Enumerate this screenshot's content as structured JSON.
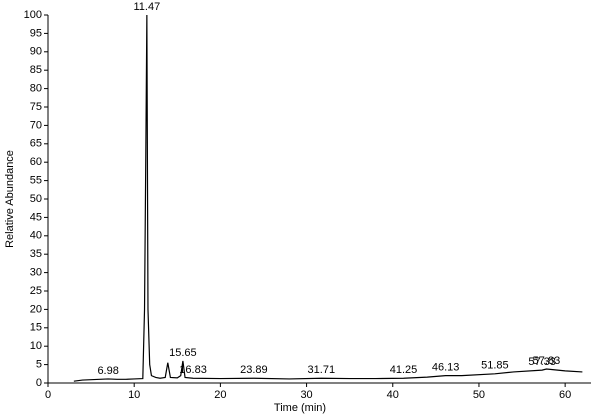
{
  "chart_data": {
    "type": "line",
    "xlabel": "Time (min)",
    "ylabel": "Relative Abundance",
    "xlim": [
      0,
      63
    ],
    "ylim": [
      0,
      100
    ],
    "xticks": [
      0,
      10,
      20,
      30,
      40,
      50,
      60
    ],
    "yticks": [
      0,
      5,
      10,
      15,
      20,
      25,
      30,
      35,
      40,
      45,
      50,
      55,
      60,
      65,
      70,
      75,
      80,
      85,
      90,
      95,
      100
    ],
    "x": [
      3,
      4,
      5,
      6,
      6.98,
      8,
      9,
      10,
      11,
      11.2,
      11.35,
      11.47,
      11.6,
      11.8,
      12,
      12.5,
      13,
      13.6,
      13.9,
      14.2,
      15,
      15.4,
      15.65,
      15.9,
      16.83,
      20,
      23.89,
      28,
      31.71,
      35,
      38,
      41.25,
      44,
      46.13,
      48,
      51.85,
      54,
      57.33,
      57.83,
      60,
      62
    ],
    "series": [
      {
        "color": "#000000",
        "values": [
          0.5,
          0.8,
          0.9,
          1,
          1.1,
          1,
          1,
          1.1,
          1.2,
          20,
          63,
          100,
          20,
          5,
          2,
          1.5,
          1.3,
          1.5,
          5.5,
          1.5,
          1.4,
          2,
          6,
          1.5,
          1.3,
          1.2,
          1.3,
          1.1,
          1.3,
          1.2,
          1.2,
          1.3,
          1.6,
          2,
          2,
          2.5,
          3,
          3.5,
          3.8,
          3.3,
          3
        ]
      }
    ],
    "annotations": [
      {
        "text": "11.47",
        "x": 11.47,
        "y": 100
      },
      {
        "text": "6.98",
        "x": 6.98,
        "y": 1.1
      },
      {
        "text": "15.65",
        "x": 15.65,
        "y": 6
      },
      {
        "text": "16.83",
        "x": 16.83,
        "y": 1.3
      },
      {
        "text": "23.89",
        "x": 23.89,
        "y": 1.3
      },
      {
        "text": "31.71",
        "x": 31.71,
        "y": 1.3
      },
      {
        "text": "41.25",
        "x": 41.25,
        "y": 1.3
      },
      {
        "text": "46.13",
        "x": 46.13,
        "y": 2
      },
      {
        "text": "51.85",
        "x": 51.85,
        "y": 2.5
      },
      {
        "text": "57.33",
        "x": 57.33,
        "y": 3.5
      },
      {
        "text": "57.83",
        "x": 57.83,
        "y": 3.8
      }
    ]
  }
}
